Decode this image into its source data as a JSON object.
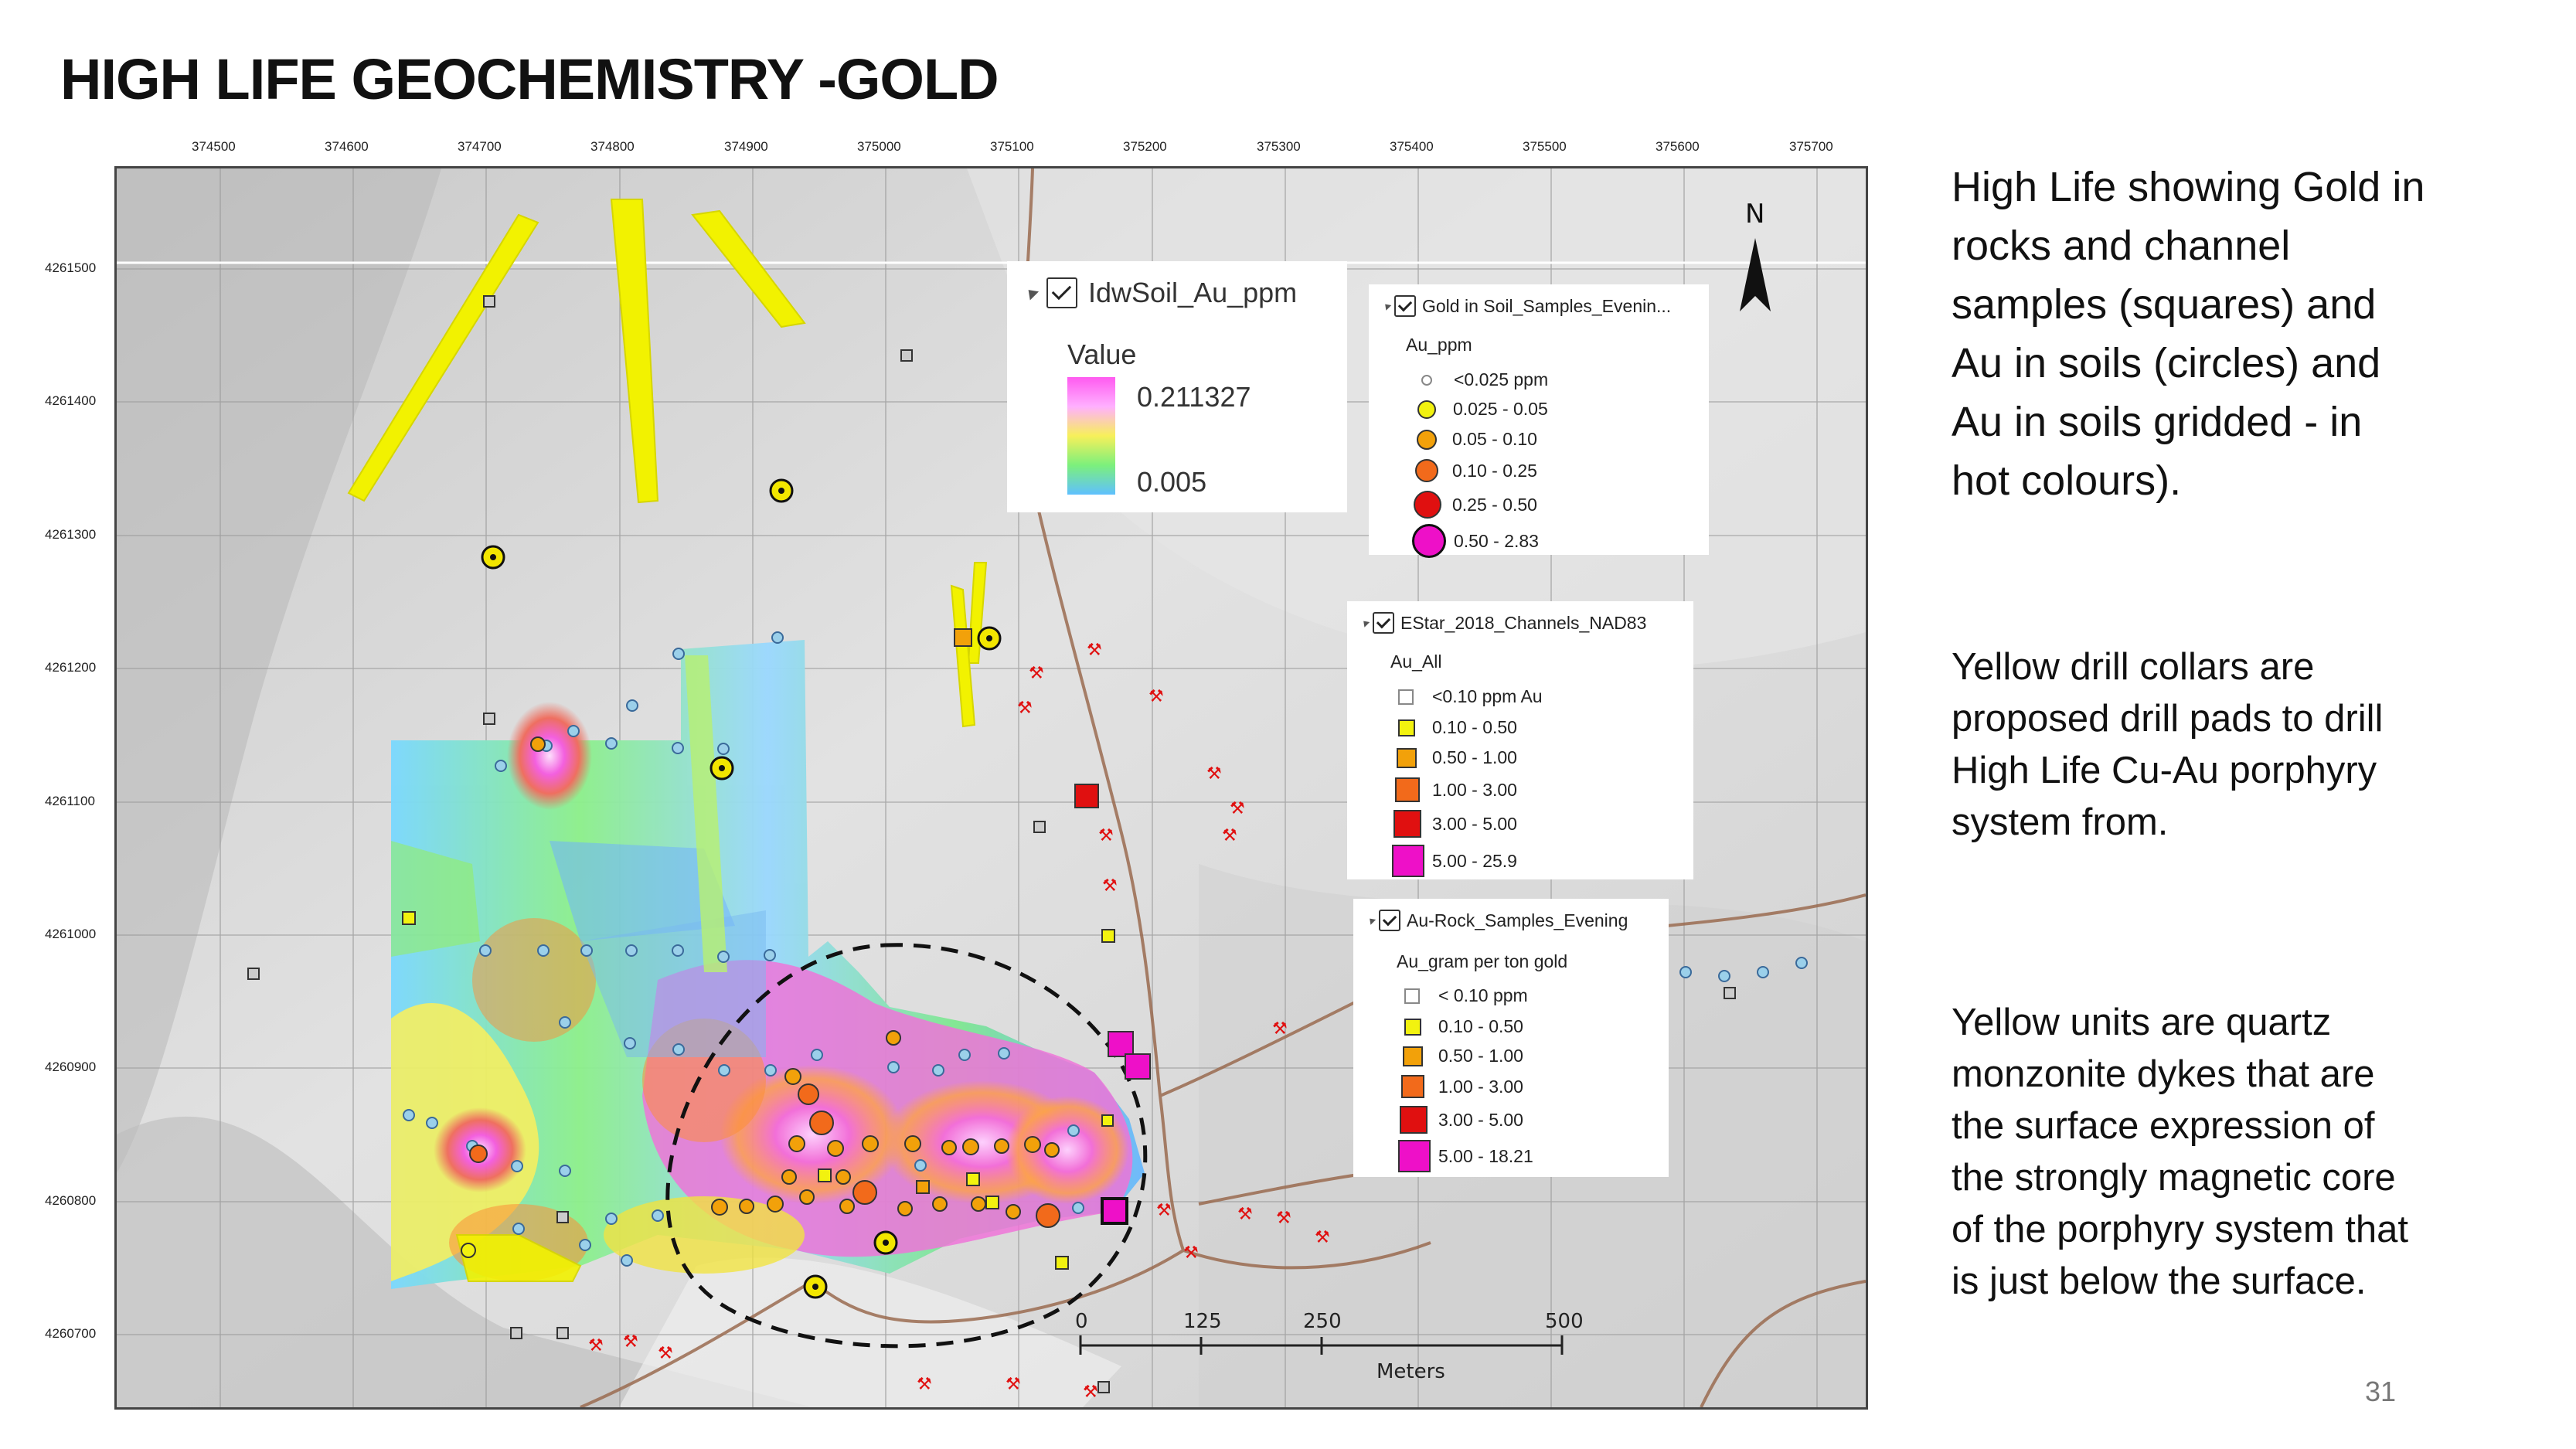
{
  "title": "HIGH LIFE GEOCHEMISTRY -GOLD",
  "map": {
    "x_ticks": [
      "374500",
      "374600",
      "374700",
      "374800",
      "374900",
      "375000",
      "375100",
      "375200",
      "375300",
      "375400",
      "375500",
      "375600",
      "375700"
    ],
    "y_ticks": [
      "4261500",
      "4261400",
      "4261300",
      "4261200",
      "4261100",
      "4261000",
      "4260900",
      "4260800",
      "4260700"
    ],
    "north_label": "N",
    "scale": {
      "labels": [
        "0",
        "125",
        "250",
        "500"
      ],
      "unit": "Meters"
    },
    "colors": {
      "dyke": "#f2f200",
      "drill_collar": "#f2e600",
      "road": "#9a6b50",
      "circle_outline": "#111111"
    }
  },
  "legend_idw": {
    "layer": "IdwSoil_Au_ppm",
    "value_label": "Value",
    "max": "0.211327",
    "min": "0.005"
  },
  "legend_soil": {
    "layer": "Gold in Soil_Samples_Evenin...",
    "field": "Au_ppm",
    "items": [
      {
        "label": "<0.025 ppm",
        "color": "#ffffff"
      },
      {
        "label": "0.025 - 0.05",
        "color": "#f2f20f"
      },
      {
        "label": "0.05 - 0.10",
        "color": "#f2a10a"
      },
      {
        "label": "0.10 - 0.25",
        "color": "#f26a1b"
      },
      {
        "label": "0.25 - 0.50",
        "color": "#e01010"
      },
      {
        "label": "0.50 - 2.83",
        "color": "#ee10c8"
      }
    ]
  },
  "legend_channels": {
    "layer": "EStar_2018_Channels_NAD83",
    "field": "Au_All",
    "items": [
      {
        "label": "<0.10 ppm Au",
        "color": "#ffffff"
      },
      {
        "label": "0.10 - 0.50",
        "color": "#f2f20f"
      },
      {
        "label": "0.50 - 1.00",
        "color": "#f2a10a"
      },
      {
        "label": "1.00 - 3.00",
        "color": "#f26a1b"
      },
      {
        "label": "3.00 - 5.00",
        "color": "#e01010"
      },
      {
        "label": "5.00 - 25.9",
        "color": "#ee10c8"
      }
    ]
  },
  "legend_rock": {
    "layer": "Au-Rock_Samples_Evening",
    "field": "Au_gram per ton gold",
    "items": [
      {
        "label": "< 0.10 ppm",
        "color": "#ffffff"
      },
      {
        "label": "0.10 - 0.50",
        "color": "#f2f20f"
      },
      {
        "label": "0.50 - 1.00",
        "color": "#f2a10a"
      },
      {
        "label": "1.00 - 3.00",
        "color": "#f26a1b"
      },
      {
        "label": "3.00 - 5.00",
        "color": "#e01010"
      },
      {
        "label": "5.00 - 18.21",
        "color": "#ee10c8"
      }
    ]
  },
  "notes": {
    "p1": [
      "High Life showing Gold in",
      "rocks and channel",
      "samples (squares) and",
      "Au in soils (circles) and",
      "Au in soils gridded - in",
      "hot colours)."
    ],
    "p2": [
      "Yellow drill collars are",
      "proposed drill pads to drill",
      "High Life Cu-Au porphyry",
      "system from."
    ],
    "p3": [
      "Yellow units are quartz",
      "monzonite dykes that are",
      "the surface expression of",
      "the strongly magnetic core",
      "of the porphyry system that",
      "is just below the surface."
    ]
  },
  "page_number": "31"
}
